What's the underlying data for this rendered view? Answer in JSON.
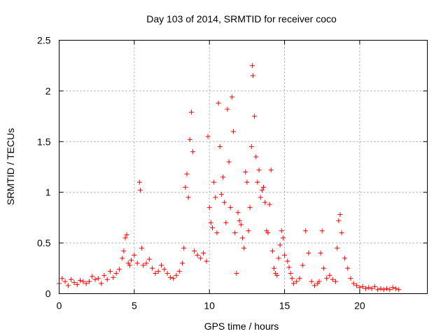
{
  "chart_data": {
    "type": "scatter",
    "title": "Day 103 of 2014, SRMTID for receiver coco",
    "xlabel": "GPS time / hours",
    "ylabel": "SRMTID / TECUs",
    "xlim": [
      0,
      24.5
    ],
    "ylim": [
      0,
      2.5
    ],
    "xticks": [
      0,
      5,
      10,
      15,
      20
    ],
    "xtick_labels": [
      "0",
      "5",
      "10",
      "15",
      "20"
    ],
    "yticks": [
      0,
      0.5,
      1,
      1.5,
      2,
      2.5
    ],
    "ytick_labels": [
      "0",
      "0.5",
      "1",
      "1.5",
      "2",
      "2.5"
    ],
    "grid": true,
    "marker": "+",
    "color": "#ff0000",
    "series": [
      {
        "name": "SRMTID",
        "x": [
          0.0,
          0.2,
          0.4,
          0.6,
          0.8,
          1.0,
          1.2,
          1.4,
          1.6,
          1.8,
          2.0,
          2.2,
          2.4,
          2.6,
          2.8,
          3.0,
          3.2,
          3.4,
          3.6,
          3.8,
          4.0,
          4.2,
          4.3,
          4.4,
          4.5,
          4.6,
          4.7,
          4.8,
          5.0,
          5.2,
          5.35,
          5.4,
          5.5,
          5.6,
          5.8,
          6.0,
          6.2,
          6.4,
          6.6,
          6.8,
          7.0,
          7.2,
          7.4,
          7.6,
          7.8,
          8.0,
          8.2,
          8.3,
          8.4,
          8.5,
          8.6,
          8.7,
          8.8,
          8.9,
          9.0,
          9.2,
          9.4,
          9.6,
          9.8,
          9.9,
          10.0,
          10.1,
          10.2,
          10.3,
          10.4,
          10.5,
          10.6,
          10.7,
          10.8,
          10.9,
          11.0,
          11.1,
          11.2,
          11.3,
          11.4,
          11.5,
          11.6,
          11.7,
          11.8,
          11.9,
          12.0,
          12.1,
          12.2,
          12.3,
          12.4,
          12.5,
          12.6,
          12.7,
          12.8,
          12.85,
          12.9,
          13.0,
          13.1,
          13.2,
          13.3,
          13.4,
          13.5,
          13.6,
          13.7,
          13.8,
          13.9,
          14.0,
          14.1,
          14.2,
          14.3,
          14.4,
          14.5,
          14.6,
          14.7,
          14.8,
          14.9,
          15.0,
          15.2,
          15.3,
          15.4,
          15.5,
          15.6,
          15.8,
          16.0,
          16.2,
          16.4,
          16.6,
          16.8,
          17.0,
          17.2,
          17.3,
          17.4,
          17.5,
          17.6,
          17.8,
          18.0,
          18.2,
          18.4,
          18.5,
          18.6,
          18.7,
          18.8,
          19.0,
          19.2,
          19.4,
          19.6,
          19.8,
          20.0,
          20.2,
          20.4,
          20.6,
          20.8,
          21.0,
          21.2,
          21.4,
          21.6,
          21.8,
          22.0,
          22.2,
          22.4,
          22.6
        ],
        "y": [
          0.1,
          0.15,
          0.12,
          0.08,
          0.14,
          0.11,
          0.09,
          0.13,
          0.12,
          0.1,
          0.12,
          0.17,
          0.14,
          0.15,
          0.1,
          0.18,
          0.14,
          0.22,
          0.16,
          0.2,
          0.24,
          0.35,
          0.42,
          0.55,
          0.58,
          0.3,
          0.28,
          0.33,
          0.38,
          0.3,
          1.1,
          1.02,
          0.45,
          0.28,
          0.3,
          0.34,
          0.25,
          0.2,
          0.22,
          0.28,
          0.24,
          0.2,
          0.16,
          0.15,
          0.18,
          0.22,
          0.3,
          0.45,
          1.05,
          1.18,
          0.95,
          1.52,
          1.79,
          1.4,
          0.42,
          0.38,
          0.35,
          0.4,
          0.32,
          1.55,
          0.85,
          0.7,
          0.65,
          1.1,
          0.95,
          0.6,
          1.88,
          1.45,
          0.98,
          1.15,
          0.9,
          0.7,
          1.82,
          1.3,
          0.85,
          1.94,
          1.6,
          0.6,
          0.2,
          0.8,
          0.72,
          0.68,
          0.55,
          0.45,
          1.2,
          1.1,
          0.62,
          0.85,
          1.45,
          2.25,
          2.15,
          1.75,
          1.35,
          1.1,
          1.22,
          0.95,
          1.02,
          1.05,
          0.9,
          0.62,
          0.6,
          0.88,
          1.22,
          0.42,
          0.25,
          0.2,
          0.18,
          0.35,
          0.48,
          0.62,
          0.55,
          0.38,
          0.32,
          0.26,
          0.2,
          0.15,
          0.1,
          0.12,
          0.15,
          0.28,
          0.62,
          0.4,
          0.12,
          0.08,
          0.1,
          0.12,
          0.4,
          0.62,
          0.25,
          0.15,
          0.18,
          0.14,
          0.12,
          0.45,
          0.72,
          0.78,
          0.6,
          0.35,
          0.25,
          0.15,
          0.1,
          0.08,
          0.06,
          0.07,
          0.05,
          0.06,
          0.05,
          0.07,
          0.04,
          0.05,
          0.04,
          0.05,
          0.04,
          0.06,
          0.05,
          0.04
        ]
      }
    ]
  }
}
